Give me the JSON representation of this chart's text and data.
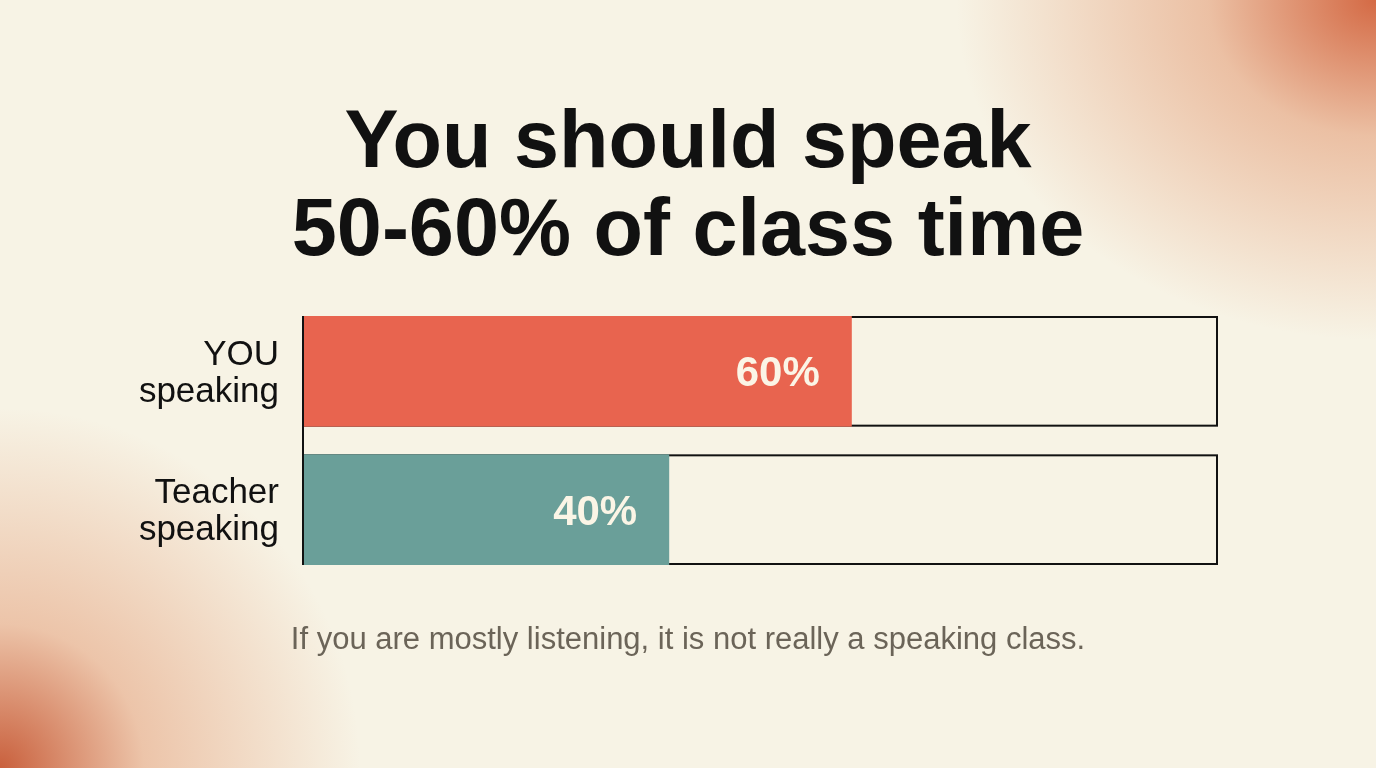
{
  "chart_data": {
    "type": "bar",
    "orientation": "horizontal",
    "title": "You should speak 50-60% of class time",
    "categories": [
      "YOU speaking",
      "Teacher speaking"
    ],
    "values": [
      60,
      40
    ],
    "colors": [
      "#e8644f",
      "#6a9f99"
    ],
    "value_labels": [
      "60%",
      "40%"
    ],
    "xlim": [
      0,
      100
    ],
    "tick_labels": "y",
    "annotations": [
      "If you are mostly listening, it is not really a speaking class."
    ]
  }
}
